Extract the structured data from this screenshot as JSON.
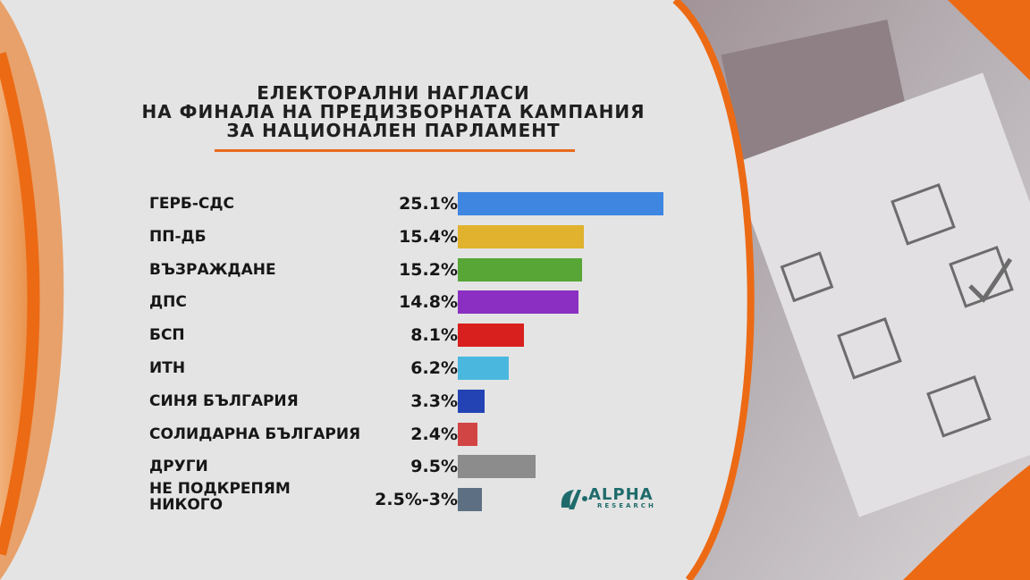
{
  "title_lines": [
    "ЕЛЕКТОРАЛНИ НАГЛАСИ",
    "НА ФИНАЛА НА ПРЕДИЗБОРНАТА КАМПАНИЯ",
    "ЗА НАЦИОНАЛЕН ПАРЛАМЕНТ"
  ],
  "logo": {
    "name": "ALPHA",
    "sub": "RESEARCH",
    "color": "#1f6b6b"
  },
  "colors": {
    "accent": "#e86a1e",
    "panel": "#e4e4e4"
  },
  "chart_data": {
    "type": "bar",
    "orientation": "horizontal",
    "categories": [
      "ГЕРБ-СДС",
      "ПП-ДБ",
      "ВЪЗРАЖДАНЕ",
      "ДПС",
      "БСП",
      "ИТН",
      "СИНЯ БЪЛГАРИЯ",
      "СОЛИДАРНА БЪЛГАРИЯ",
      "ДРУГИ",
      "НЕ ПОДКРЕПЯМ НИКОГО"
    ],
    "values": [
      25.1,
      15.4,
      15.2,
      14.8,
      8.1,
      6.2,
      3.3,
      2.4,
      9.5,
      3.0
    ],
    "labels": [
      "25.1%",
      "15.4%",
      "15.2%",
      "14.8%",
      "8.1%",
      "6.2%",
      "3.3%",
      "2.4%",
      "9.5%",
      "2.5%-3%"
    ],
    "colors": [
      "#3f86e0",
      "#e0b22e",
      "#57a636",
      "#8a2fc1",
      "#d8201e",
      "#4ab8de",
      "#2343b5",
      "#d24545",
      "#8c8c8c",
      "#5d7083"
    ]
  }
}
